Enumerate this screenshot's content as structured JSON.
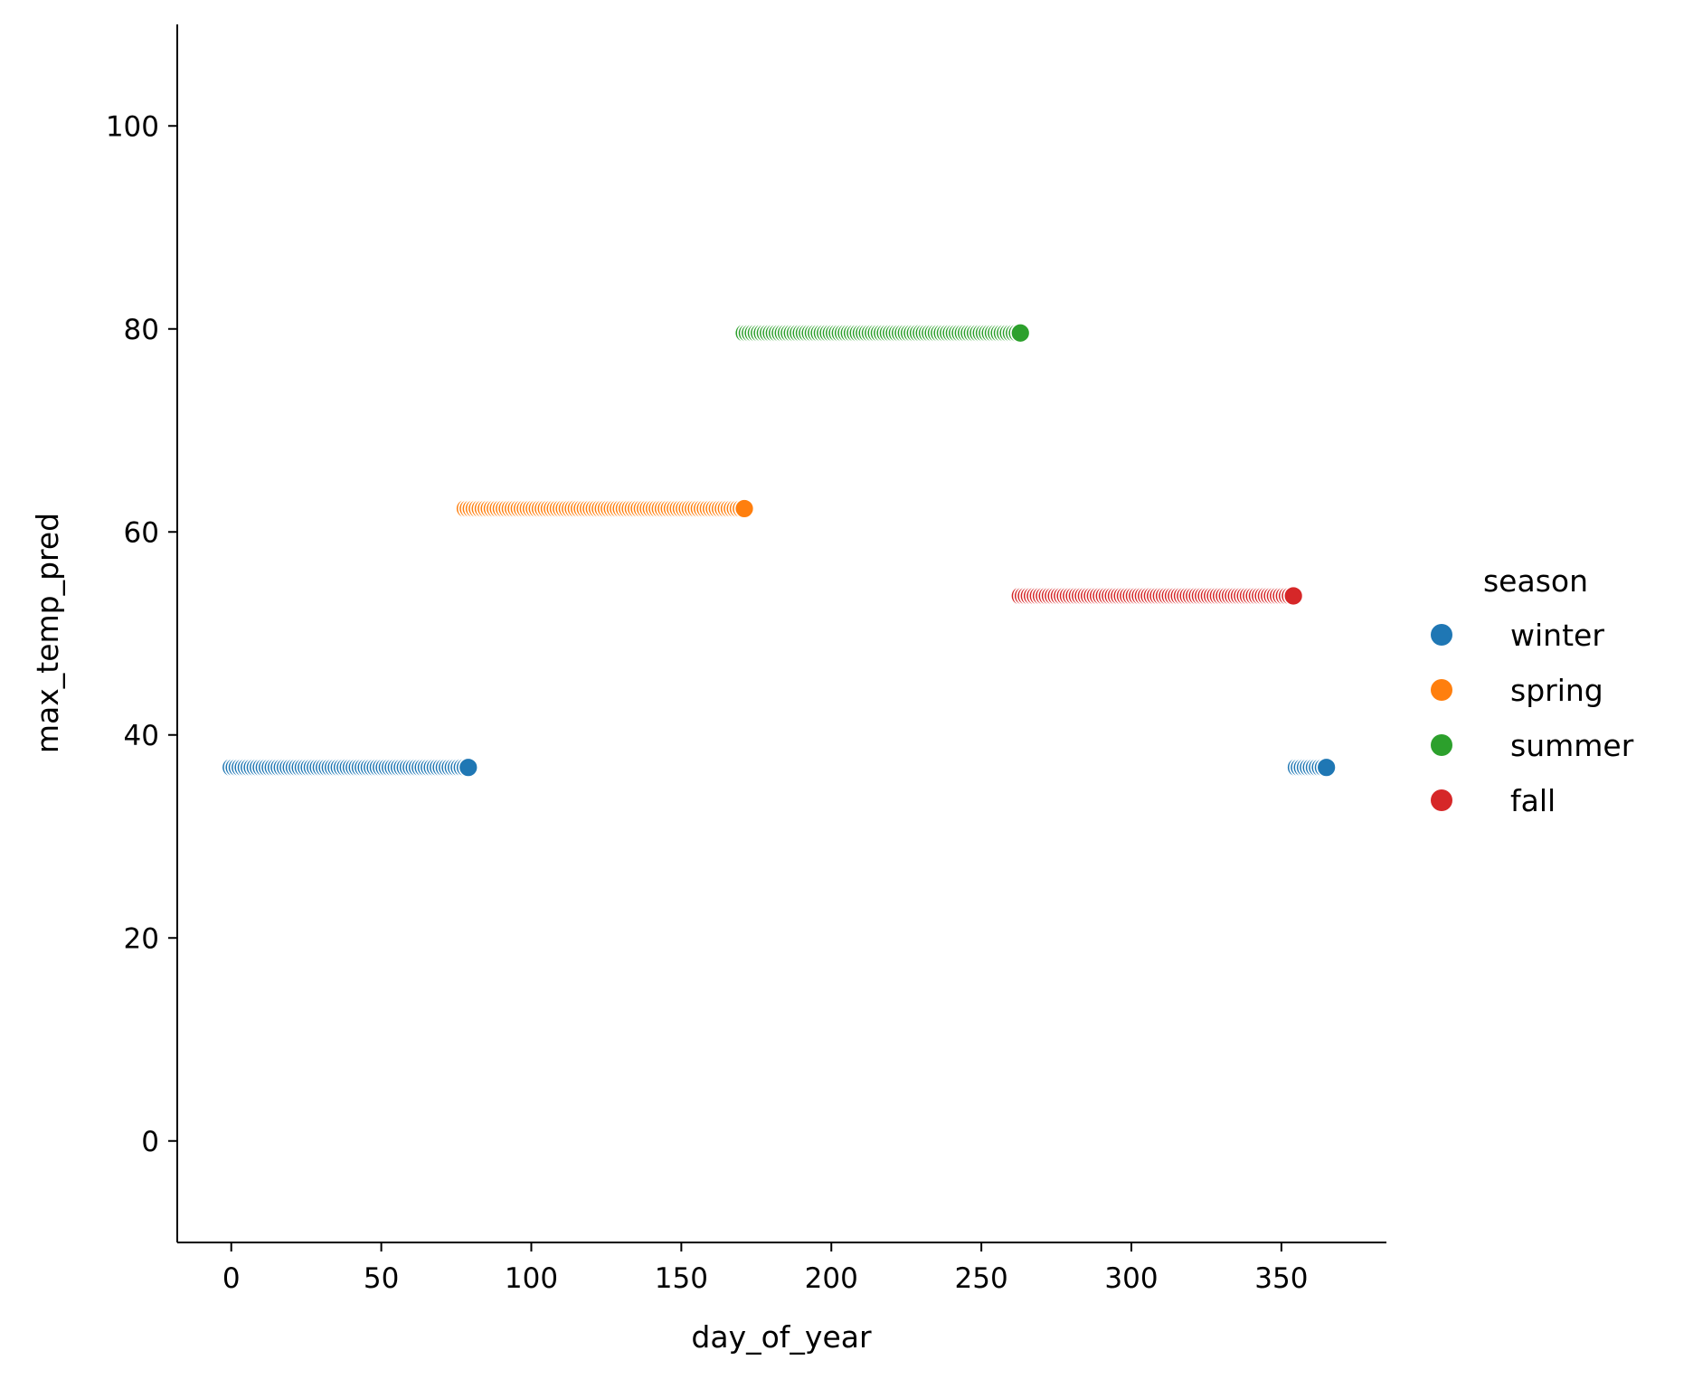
{
  "chart_data": {
    "type": "scatter",
    "xlabel": "day_of_year",
    "ylabel": "max_temp_pred",
    "xlim": [
      -18,
      385
    ],
    "ylim": [
      -10,
      110
    ],
    "xticks": [
      0,
      50,
      100,
      150,
      200,
      250,
      300,
      350
    ],
    "yticks": [
      0,
      20,
      40,
      60,
      80,
      100
    ],
    "legend_title": "season",
    "legend_position": "right",
    "grid": false,
    "series": [
      {
        "name": "winter",
        "color": "#1f77b4",
        "y": 36.8,
        "x_ranges": [
          [
            0,
            79
          ],
          [
            355,
            365
          ]
        ]
      },
      {
        "name": "spring",
        "color": "#ff7f0e",
        "y": 62.3,
        "x_ranges": [
          [
            78,
            171
          ]
        ]
      },
      {
        "name": "summer",
        "color": "#2ca02c",
        "y": 79.6,
        "x_ranges": [
          [
            171,
            263
          ]
        ]
      },
      {
        "name": "fall",
        "color": "#d62728",
        "y": 53.7,
        "x_ranges": [
          [
            263,
            354
          ]
        ]
      }
    ]
  }
}
